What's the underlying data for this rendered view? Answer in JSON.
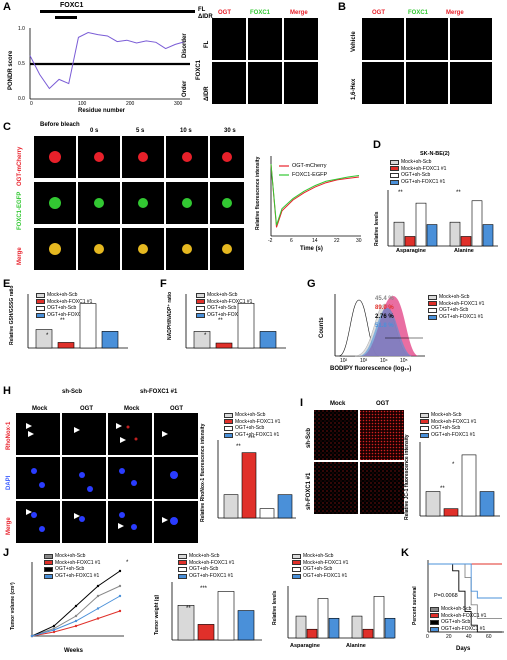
{
  "panel_letters": [
    "A",
    "B",
    "C",
    "D",
    "E",
    "F",
    "G",
    "H",
    "I",
    "J",
    "K"
  ],
  "panelA": {
    "protein": "FOXC1",
    "legend_fl": "FL",
    "legend_didr": "ΔIDR",
    "ylabel": "PONDR score",
    "xlabel": "Residue number",
    "yticks": [
      "1.0",
      "0.5",
      "0.0"
    ],
    "xticks": [
      "0",
      "100",
      "200",
      "300"
    ],
    "disorder": "Disorder",
    "order": "Order",
    "row_group": "FOXC1",
    "rows": [
      "FL",
      "ΔIDR"
    ],
    "cols": [
      "OGT",
      "FOXC1",
      "Merge"
    ]
  },
  "panelB": {
    "rows": [
      "Vehicle",
      "1,6-Hex"
    ],
    "cols": [
      "OGT",
      "FOXC1",
      "Merge"
    ]
  },
  "panelC": {
    "cols": [
      "Before bleach",
      "0 s",
      "5 s",
      "10 s",
      "30 s"
    ],
    "rows": [
      "OGT-mCherry",
      "FOXC1-EGFP",
      "Merge"
    ],
    "legend": [
      "OGT-mCherry",
      "FOXC1-EGFP"
    ],
    "ylabel": "Relative fluorescence intensity",
    "xlabel": "Time (s)",
    "xticks": [
      "-2",
      "6",
      "14",
      "22",
      "30"
    ]
  },
  "groups": [
    "Mock+sh-Scb",
    "Mock+sh-FOXC1 #1",
    "OGT+sh-Scb",
    "OGT+sh-FOXC1 #1"
  ],
  "colors": {
    "g1": "#d9d9d9",
    "g2": "#e0302a",
    "g3": "#ffffff",
    "g4": "#4a90d9",
    "red": "#e8202a",
    "green": "#32c832"
  },
  "panelD": {
    "cell_line": "SK-N-BE(2)",
    "ylabel": "Relative levels",
    "categories": [
      "Asparagine",
      "Alanine"
    ],
    "sig": "**"
  },
  "panelE": {
    "ylabel": "Relative GSH/GSSG ratio",
    "sig": [
      "*",
      "**"
    ]
  },
  "panelF": {
    "ylabel": "NADPH/NADP⁺ ratio",
    "sig": [
      "*",
      "**"
    ]
  },
  "panelG": {
    "col_groups": [
      "sh-Scb",
      "sh-FOXC1 #1"
    ],
    "cols": [
      "Mock",
      "OGT",
      "Mock",
      "OGT"
    ],
    "rows": [
      "RhoNox-1",
      "DAPI",
      "Merge"
    ],
    "ylabel": "Relative RhoNox-1 fluorescence intensity",
    "sig": [
      "**",
      "***"
    ]
  },
  "panelH": {
    "xlabel": "BODIPY fluorescence (log₁₀)",
    "ylabel": "Counts",
    "pcts": [
      "45.4 %",
      "89.0 %",
      "2.76 %",
      "51.8 %"
    ],
    "xticks": [
      "10²",
      "10³",
      "10⁴",
      "10⁵"
    ]
  },
  "panelI": {
    "cols": [
      "Mock",
      "OGT"
    ],
    "rows": [
      "sh-Scb",
      "sh-FOXC1 #1"
    ],
    "ylabel": "Relative JC-1 fluorescence intensity",
    "sig": [
      "**",
      "*"
    ]
  },
  "panelJ": {
    "ylabel_vol": "Tumor volume (cm³)",
    "xlabel": "Weeks",
    "ylabel_wt": "Tumor weight (g)",
    "ylabel_lv": "Relative levels",
    "categories": [
      "Asparagine",
      "Alanine"
    ],
    "sig": [
      "**",
      "***",
      "*"
    ]
  },
  "panelK": {
    "ylabel": "Percent survival",
    "xlabel": "Days",
    "pval": "P=0.0068",
    "xticks": [
      "0",
      "20",
      "40",
      "60"
    ]
  },
  "chart_data": [
    {
      "type": "line",
      "title": "",
      "xlabel": "Residue number",
      "ylabel": "PONDR score",
      "ylim": [
        0,
        1
      ],
      "x": [
        0,
        20,
        40,
        60,
        80,
        100,
        120,
        140,
        160,
        180,
        200,
        220,
        240,
        260,
        280,
        300,
        320
      ],
      "series": [
        {
          "values": [
            0.62,
            0.35,
            0.15,
            0.28,
            0.22,
            0.88,
            0.95,
            0.92,
            0.9,
            0.82,
            0.84,
            0.8,
            0.83,
            0.81,
            0.72,
            0.78,
            0.82
          ]
        }
      ]
    },
    {
      "type": "line",
      "xlabel": "Time (s)",
      "ylabel": "Relative fluorescence intensity",
      "x": [
        -2,
        0,
        2,
        6,
        10,
        14,
        18,
        22,
        26,
        30
      ],
      "series": [
        {
          "name": "OGT-mCherry",
          "values": [
            1.0,
            0.12,
            0.35,
            0.5,
            0.6,
            0.68,
            0.74,
            0.78,
            0.8,
            0.82
          ]
        },
        {
          "name": "FOXC1-EGFP",
          "values": [
            1.0,
            0.15,
            0.38,
            0.52,
            0.62,
            0.7,
            0.76,
            0.79,
            0.82,
            0.84
          ]
        }
      ]
    },
    {
      "type": "bar",
      "title": "SK-N-BE(2)",
      "ylabel": "Relative levels",
      "categories": [
        "Asparagine",
        "Alanine"
      ],
      "series": [
        {
          "name": "Mock+sh-Scb",
          "values": [
            1.0,
            1.0
          ]
        },
        {
          "name": "Mock+sh-FOXC1 #1",
          "values": [
            0.4,
            0.4
          ]
        },
        {
          "name": "OGT+sh-Scb",
          "values": [
            1.8,
            1.9
          ]
        },
        {
          "name": "OGT+sh-FOXC1 #1",
          "values": [
            0.9,
            0.9
          ]
        }
      ]
    },
    {
      "type": "bar",
      "ylabel": "Relative GSH/GSSG ratio",
      "categories": [
        "Mock+sh-Scb",
        "Mock+sh-FOXC1 #1",
        "OGT+sh-Scb",
        "OGT+sh-FOXC1 #1"
      ],
      "values": [
        1.0,
        0.3,
        2.4,
        0.9
      ]
    },
    {
      "type": "bar",
      "ylabel": "NADPH/NADP⁺ ratio",
      "categories": [
        "Mock+sh-Scb",
        "Mock+sh-FOXC1 #1",
        "OGT+sh-Scb",
        "OGT+sh-FOXC1 #1"
      ],
      "values": [
        1.0,
        0.3,
        2.7,
        1.0
      ]
    },
    {
      "type": "bar",
      "ylabel": "Relative RhoNox-1 fluorescence intensity",
      "categories": [
        "Mock+sh-Scb",
        "Mock+sh-FOXC1 #1",
        "OGT+sh-Scb",
        "OGT+sh-FOXC1 #1"
      ],
      "values": [
        1.0,
        2.8,
        0.4,
        1.0
      ]
    },
    {
      "type": "bar",
      "ylabel": "Relative JC-1 fluorescence intensity",
      "categories": [
        "Mock+sh-Scb",
        "Mock+sh-FOXC1 #1",
        "OGT+sh-Scb",
        "OGT+sh-FOXC1 #1"
      ],
      "values": [
        1.0,
        0.3,
        2.5,
        1.0
      ]
    },
    {
      "type": "line",
      "ylabel": "Tumor volume (cm³)",
      "xlabel": "Weeks",
      "x": [
        0,
        1,
        2,
        3,
        4
      ],
      "series": [
        {
          "name": "Mock+sh-Scb",
          "values": [
            0,
            0.15,
            0.4,
            0.8,
            1.0
          ]
        },
        {
          "name": "Mock+sh-FOXC1 #1",
          "values": [
            0,
            0.08,
            0.2,
            0.35,
            0.5
          ]
        },
        {
          "name": "OGT+sh-Scb",
          "values": [
            0,
            0.2,
            0.6,
            1.0,
            1.3
          ]
        },
        {
          "name": "OGT+sh-FOXC1 #1",
          "values": [
            0,
            0.12,
            0.3,
            0.55,
            0.8
          ]
        }
      ]
    },
    {
      "type": "bar",
      "ylabel": "Tumor weight (g)",
      "categories": [
        "Mock+sh-Scb",
        "Mock+sh-FOXC1 #1",
        "OGT+sh-Scb",
        "OGT+sh-FOXC1 #1"
      ],
      "values": [
        1.0,
        0.45,
        1.4,
        0.85
      ]
    },
    {
      "type": "bar",
      "ylabel": "Relative levels",
      "categories": [
        "Asparagine",
        "Alanine"
      ],
      "series": [
        {
          "name": "Mock+sh-Scb",
          "values": [
            1.0,
            1.0
          ]
        },
        {
          "name": "Mock+sh-FOXC1 #1",
          "values": [
            0.4,
            0.4
          ]
        },
        {
          "name": "OGT+sh-Scb",
          "values": [
            1.8,
            1.9
          ]
        },
        {
          "name": "OGT+sh-FOXC1 #1",
          "values": [
            0.9,
            0.9
          ]
        }
      ]
    },
    {
      "type": "line",
      "ylabel": "Percent survival",
      "xlabel": "Days",
      "x": [
        0,
        20,
        25,
        30,
        35,
        40,
        60
      ],
      "series": [
        {
          "name": "Mock+sh-Scb",
          "values": [
            100,
            100,
            100,
            80,
            40,
            20,
            20
          ]
        },
        {
          "name": "Mock+sh-FOXC1 #1",
          "values": [
            100,
            100,
            100,
            100,
            100,
            100,
            100
          ]
        },
        {
          "name": "OGT+sh-Scb",
          "values": [
            100,
            90,
            60,
            30,
            10,
            0,
            0
          ]
        },
        {
          "name": "OGT+sh-FOXC1 #1",
          "values": [
            100,
            100,
            100,
            100,
            60,
            50,
            50
          ]
        }
      ]
    }
  ]
}
